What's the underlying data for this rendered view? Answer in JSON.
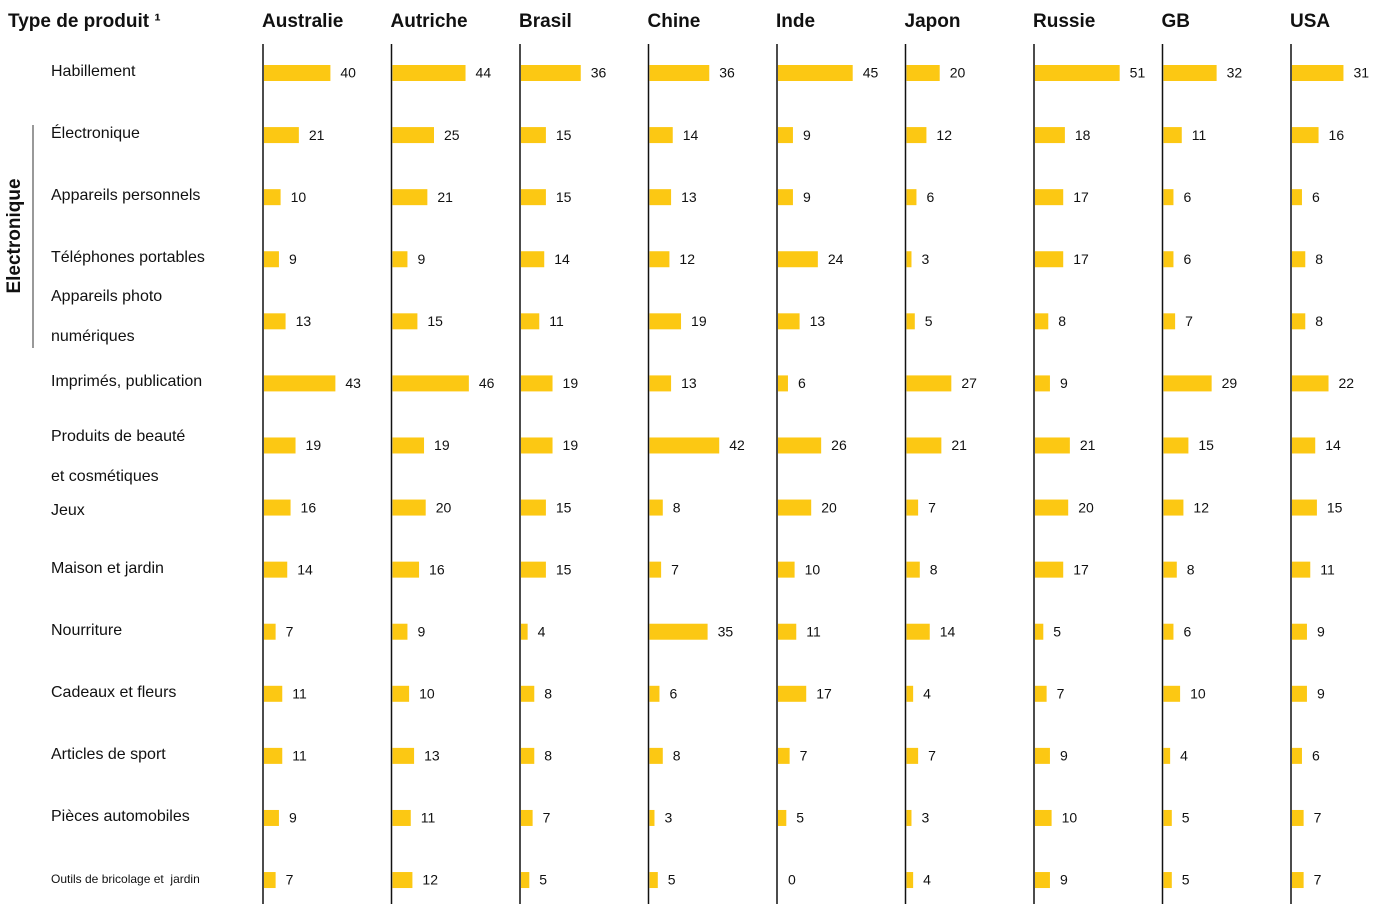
{
  "chart_data": {
    "type": "bar",
    "header": "Type de produit ¹",
    "group_label": "Electronique",
    "color": "#fcc813",
    "categories": [
      "Habillement",
      "Électronique",
      "Appareils personnels",
      "Téléphones portables",
      "Appareils photo\nnumériques",
      "Imprimés, publication",
      "Produits de beauté\net cosmétiques",
      "Jeux",
      "Maison et jardin",
      "Nourriture",
      "Cadeaux et fleurs",
      "Articles de sport",
      "Pièces automobiles",
      "Outils de bricolage et  jardin"
    ],
    "series": [
      {
        "name": "Australie",
        "values": [
          40,
          21,
          10,
          9,
          13,
          43,
          19,
          16,
          14,
          7,
          11,
          11,
          9,
          7
        ]
      },
      {
        "name": "Autriche",
        "values": [
          44,
          25,
          21,
          9,
          15,
          46,
          19,
          20,
          16,
          9,
          10,
          13,
          11,
          12
        ]
      },
      {
        "name": "Brasil",
        "values": [
          36,
          15,
          15,
          14,
          11,
          19,
          19,
          15,
          15,
          4,
          8,
          8,
          7,
          5
        ]
      },
      {
        "name": "Chine",
        "values": [
          36,
          14,
          13,
          12,
          19,
          13,
          42,
          8,
          7,
          35,
          6,
          8,
          3,
          5
        ]
      },
      {
        "name": "Inde",
        "values": [
          45,
          9,
          9,
          24,
          13,
          6,
          26,
          20,
          10,
          11,
          17,
          7,
          5,
          0
        ]
      },
      {
        "name": "Japon",
        "values": [
          20,
          12,
          6,
          3,
          5,
          27,
          21,
          7,
          8,
          14,
          4,
          7,
          3,
          4
        ]
      },
      {
        "name": "Russie",
        "values": [
          51,
          18,
          17,
          17,
          8,
          9,
          21,
          20,
          17,
          5,
          7,
          9,
          10,
          9
        ]
      },
      {
        "name": "GB",
        "values": [
          32,
          11,
          6,
          6,
          7,
          29,
          15,
          12,
          8,
          6,
          10,
          4,
          5,
          5
        ]
      },
      {
        "name": "USA",
        "values": [
          31,
          16,
          6,
          8,
          8,
          22,
          14,
          15,
          11,
          9,
          9,
          6,
          7,
          7
        ]
      }
    ]
  }
}
